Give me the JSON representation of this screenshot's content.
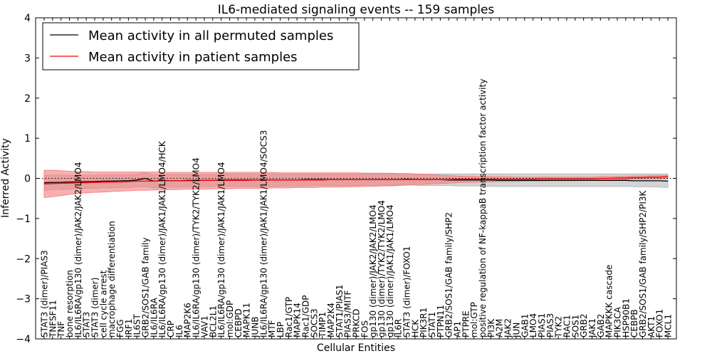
{
  "chart_data": {
    "type": "line",
    "title": "IL6-mediated signaling events -- 159 samples",
    "xlabel": "Cellular Entities",
    "ylabel": "Inferred Activity",
    "ylim": [
      -4,
      4
    ],
    "yticks": [
      -4,
      -3,
      -2,
      -1,
      0,
      1,
      2,
      3,
      4
    ],
    "legend_position": "top-left",
    "reference_line": 0,
    "categories": [
      "STAT3 (dimer)/PIAS3",
      "TNFSF11",
      "TNF",
      "bone resorption",
      "IL6/IL6RA/gp130 (dimer)/JAK2/JAK2/LMO4",
      "STAT3",
      "STAT3 (dimer)",
      "cell cycle arrest",
      "macrophage differentiation",
      "FGG",
      "IRF1",
      "IL6ST",
      "GRB2/SOS1/GAB family",
      "IL6/IL6RA",
      "IL6/IL6RA/gp130 (dimer)/JAK1/JAK1/LMO4/HCK",
      "CRP",
      "IL6",
      "MAP2K6",
      "IL6/IL6RA/gp130 (dimer)/TYK2/TYK2/LMO4",
      "VAV1",
      "BCL2L1",
      "IL6/IL6RA/gp130 (dimer)/JAK1/JAK1/LMO4",
      "mol:GDP",
      "CEBPD",
      "MAPK11",
      "JUNB",
      "IL6/IL6RA/gp130 (dimer)/JAK1/JAK1/LMO4/SOCS3",
      "MTF",
      "LBP",
      "Rac1/GTP",
      "MAPK14",
      "Rac1/GDP",
      "SOCS3",
      "TIMP1",
      "MAP2K4",
      "STAT1/PIAS1",
      "PIAS3/MITF",
      "PRKCD",
      "FOS",
      "gp130 (dimer)/JAK2/JAK2/LMO4",
      "gp130 (dimer)/TYK2/TYK2/LMO4",
      "gp130 (dimer)/JAK1/JAK1/LMO4",
      "IL6R",
      "STAT3 (dimer)/FOXO1",
      "HCK",
      "PIK3R1",
      "STAT1",
      "PTPN11",
      "GRB2/SOS1/GAB family/SHP2",
      "AP1",
      "PTPRE",
      "mol:GTP",
      "positive regulation of NF-kappaB transcription factor activity",
      "PI3K",
      "A2M",
      "JAK2",
      "JUN",
      "GAB1",
      "LMO4",
      "PIAS1",
      "PIAS3",
      "TYK2",
      "RAC1",
      "SOS1",
      "GRB2",
      "JAK1",
      "GAB2",
      "MAPKKK cascade",
      "PIK3CA",
      "HSP90B1",
      "CEBPB",
      "GRB2/SOS1/GAB family/SHP2/PI3K",
      "AKT1",
      "FOXO1",
      "MCL1"
    ],
    "series": [
      {
        "name": "Mean activity in all permuted samples",
        "color": "#000000",
        "band_color": "#b0b0b0",
        "values": [
          -0.11,
          -0.1,
          -0.1,
          -0.09,
          -0.09,
          -0.08,
          -0.08,
          -0.07,
          -0.07,
          -0.06,
          -0.06,
          -0.04,
          0.0,
          -0.07,
          -0.05,
          -0.06,
          -0.06,
          -0.05,
          -0.05,
          -0.05,
          -0.05,
          -0.04,
          -0.04,
          -0.04,
          -0.04,
          -0.04,
          -0.04,
          -0.04,
          -0.04,
          -0.04,
          -0.04,
          -0.03,
          -0.03,
          -0.03,
          -0.03,
          -0.03,
          -0.03,
          -0.03,
          -0.03,
          -0.03,
          -0.03,
          -0.03,
          -0.03,
          -0.02,
          -0.03,
          -0.03,
          -0.03,
          -0.03,
          -0.04,
          -0.04,
          -0.04,
          -0.04,
          -0.04,
          -0.04,
          -0.05,
          -0.05,
          -0.05,
          -0.05,
          -0.05,
          -0.05,
          -0.05,
          -0.05,
          -0.05,
          -0.05,
          -0.05,
          -0.05,
          -0.05,
          -0.05,
          -0.05,
          -0.05,
          -0.06,
          -0.06,
          -0.06,
          -0.06,
          -0.07
        ],
        "lower": [
          -0.3,
          -0.28,
          -0.28,
          -0.27,
          -0.26,
          -0.25,
          -0.25,
          -0.24,
          -0.24,
          -0.23,
          -0.23,
          -0.22,
          -0.2,
          -0.24,
          -0.22,
          -0.22,
          -0.22,
          -0.21,
          -0.21,
          -0.21,
          -0.2,
          -0.2,
          -0.2,
          -0.2,
          -0.2,
          -0.2,
          -0.2,
          -0.2,
          -0.19,
          -0.19,
          -0.19,
          -0.19,
          -0.18,
          -0.18,
          -0.18,
          -0.18,
          -0.18,
          -0.18,
          -0.17,
          -0.17,
          -0.17,
          -0.17,
          -0.17,
          -0.16,
          -0.17,
          -0.18,
          -0.18,
          -0.18,
          -0.18,
          -0.19,
          -0.19,
          -0.19,
          -0.19,
          -0.2,
          -0.2,
          -0.2,
          -0.2,
          -0.2,
          -0.2,
          -0.2,
          -0.2,
          -0.2,
          -0.2,
          -0.2,
          -0.2,
          -0.2,
          -0.2,
          -0.2,
          -0.2,
          -0.2,
          -0.21,
          -0.21,
          -0.21,
          -0.22,
          -0.23
        ],
        "upper": [
          0.08,
          0.08,
          0.08,
          0.08,
          0.08,
          0.08,
          0.08,
          0.09,
          0.09,
          0.09,
          0.09,
          0.1,
          0.14,
          0.09,
          0.1,
          0.1,
          0.1,
          0.1,
          0.1,
          0.1,
          0.1,
          0.11,
          0.11,
          0.11,
          0.11,
          0.11,
          0.11,
          0.11,
          0.11,
          0.11,
          0.11,
          0.11,
          0.11,
          0.11,
          0.11,
          0.11,
          0.11,
          0.11,
          0.11,
          0.11,
          0.11,
          0.11,
          0.11,
          0.12,
          0.11,
          0.11,
          0.11,
          0.11,
          0.11,
          0.11,
          0.11,
          0.11,
          0.11,
          0.11,
          0.11,
          0.11,
          0.11,
          0.11,
          0.11,
          0.11,
          0.11,
          0.11,
          0.11,
          0.11,
          0.11,
          0.11,
          0.11,
          0.11,
          0.11,
          0.11,
          0.11,
          0.11,
          0.11,
          0.11,
          0.11
        ]
      },
      {
        "name": "Mean activity in patient samples",
        "color": "#ff0000",
        "band_color": "#f47c7c",
        "values": [
          -0.14,
          -0.13,
          -0.12,
          -0.12,
          -0.11,
          -0.11,
          -0.1,
          -0.1,
          -0.09,
          -0.09,
          -0.08,
          -0.07,
          -0.07,
          -0.07,
          -0.06,
          -0.06,
          -0.06,
          -0.06,
          -0.06,
          -0.05,
          -0.05,
          -0.05,
          -0.05,
          -0.05,
          -0.05,
          -0.04,
          -0.04,
          -0.04,
          -0.04,
          -0.04,
          -0.04,
          -0.04,
          -0.04,
          -0.04,
          -0.03,
          -0.03,
          -0.03,
          -0.03,
          -0.03,
          -0.03,
          -0.03,
          -0.03,
          -0.03,
          -0.03,
          -0.03,
          -0.03,
          -0.03,
          -0.03,
          -0.03,
          -0.02,
          -0.02,
          -0.02,
          -0.02,
          -0.02,
          -0.02,
          -0.02,
          -0.02,
          -0.02,
          -0.02,
          -0.01,
          -0.01,
          -0.01,
          -0.01,
          -0.01,
          -0.01,
          -0.01,
          0.0,
          0.0,
          0.01,
          0.01,
          0.02,
          0.02,
          0.03,
          0.03,
          0.04
        ],
        "lower": [
          -0.48,
          -0.46,
          -0.43,
          -0.4,
          -0.38,
          -0.36,
          -0.35,
          -0.34,
          -0.33,
          -0.32,
          -0.31,
          -0.3,
          -0.3,
          -0.29,
          -0.29,
          -0.28,
          -0.28,
          -0.27,
          -0.27,
          -0.27,
          -0.26,
          -0.26,
          -0.26,
          -0.25,
          -0.25,
          -0.25,
          -0.25,
          -0.24,
          -0.24,
          -0.24,
          -0.23,
          -0.23,
          -0.23,
          -0.22,
          -0.22,
          -0.22,
          -0.21,
          -0.21,
          -0.2,
          -0.2,
          -0.19,
          -0.19,
          -0.18,
          -0.17,
          -0.16,
          -0.15,
          -0.14,
          -0.13,
          -0.12,
          -0.11,
          -0.1,
          -0.1,
          -0.09,
          -0.09,
          -0.08,
          -0.08,
          -0.08,
          -0.07,
          -0.07,
          -0.07,
          -0.06,
          -0.06,
          -0.06,
          -0.06,
          -0.05,
          -0.05,
          -0.04,
          -0.04,
          -0.03,
          -0.03,
          -0.02,
          -0.02,
          -0.01,
          -0.01,
          0.0
        ],
        "upper": [
          0.2,
          0.2,
          0.19,
          0.18,
          0.17,
          0.17,
          0.16,
          0.16,
          0.16,
          0.16,
          0.16,
          0.16,
          0.16,
          0.16,
          0.15,
          0.15,
          0.15,
          0.15,
          0.15,
          0.15,
          0.15,
          0.15,
          0.15,
          0.15,
          0.15,
          0.15,
          0.15,
          0.15,
          0.14,
          0.14,
          0.14,
          0.14,
          0.14,
          0.14,
          0.14,
          0.14,
          0.14,
          0.14,
          0.13,
          0.13,
          0.13,
          0.13,
          0.12,
          0.12,
          0.11,
          0.1,
          0.09,
          0.08,
          0.07,
          0.06,
          0.05,
          0.05,
          0.04,
          0.04,
          0.04,
          0.04,
          0.03,
          0.03,
          0.03,
          0.03,
          0.03,
          0.03,
          0.03,
          0.03,
          0.03,
          0.03,
          0.04,
          0.04,
          0.05,
          0.05,
          0.06,
          0.06,
          0.07,
          0.07,
          0.08
        ]
      }
    ]
  }
}
